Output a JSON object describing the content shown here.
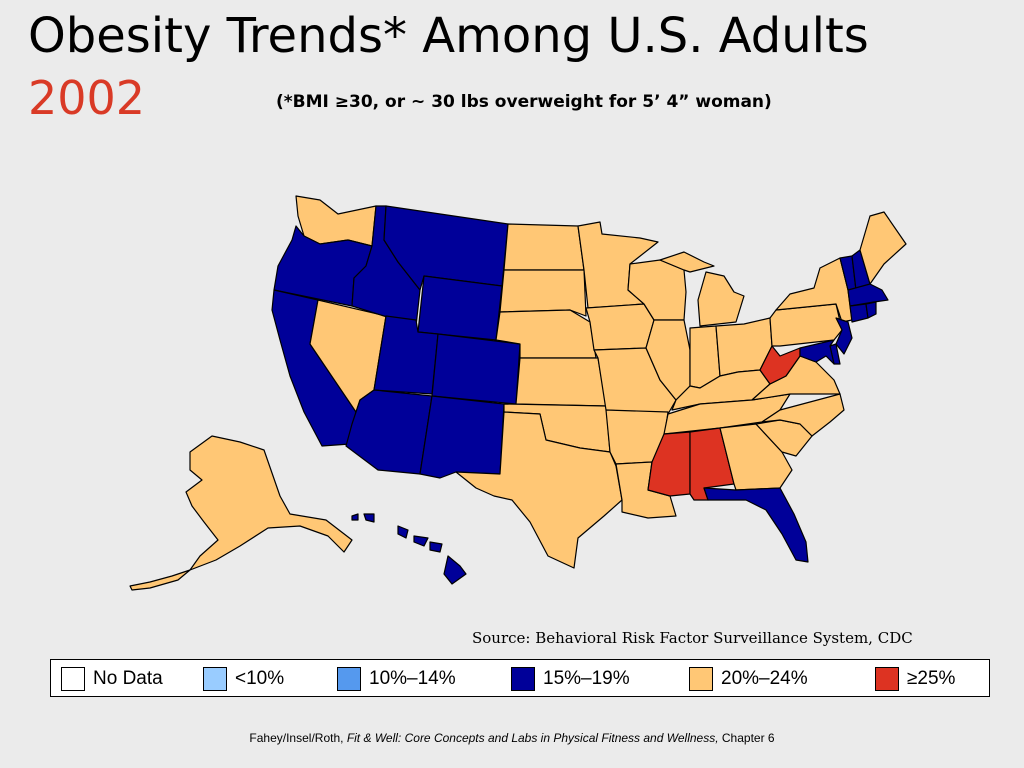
{
  "title": "Obesity Trends* Among U.S. Adults",
  "year": "2002",
  "subtitle": "(*BMI ≥30, or ~ 30 lbs overweight for 5’ 4” woman)",
  "source": "Source: Behavioral Risk Factor Surveillance System, CDC",
  "colors": {
    "no_data": "#ffffff",
    "lt10": "#99ccff",
    "c10_14": "#5599ee",
    "c15_19": "#000099",
    "c20_24": "#ffc775",
    "ge25": "#dd3322"
  },
  "legend": [
    {
      "label": "No Data",
      "color": "#ffffff"
    },
    {
      "label": "<10%",
      "color": "#99ccff"
    },
    {
      "label": "10%–14%",
      "color": "#5599ee"
    },
    {
      "label": "15%–19%",
      "color": "#000099"
    },
    {
      "label": "20%–24%",
      "color": "#ffc775"
    },
    {
      "label": "≥25%",
      "color": "#dd3322"
    }
  ],
  "state_categories": {
    "15_19": [
      "WA-none"
    ],
    "list_15_19": [
      "OR",
      "CA",
      "ID",
      "MT",
      "WY",
      "UT",
      "CO",
      "AZ",
      "NM",
      "FL",
      "HI",
      "VT",
      "NH",
      "MA",
      "CT",
      "RI",
      "NJ",
      "MD",
      "DE"
    ],
    "list_20_24": [
      "WA",
      "NV",
      "ND",
      "SD",
      "NE",
      "KS",
      "OK",
      "TX",
      "MN",
      "IA",
      "MO",
      "AR",
      "LA",
      "WI",
      "IL",
      "MI",
      "IN",
      "OH",
      "KY",
      "TN",
      "GA",
      "SC",
      "NC",
      "VA",
      "PA",
      "NY",
      "ME",
      "AK"
    ],
    "list_ge25": [
      "MS",
      "AL",
      "WV"
    ]
  },
  "footer": {
    "authors": "Fahey/Insel/Roth,",
    "book": "Fit & Well: Core Concepts and Labs in Physical Fitness and Wellness,",
    "chapter": "Chapter 6"
  }
}
